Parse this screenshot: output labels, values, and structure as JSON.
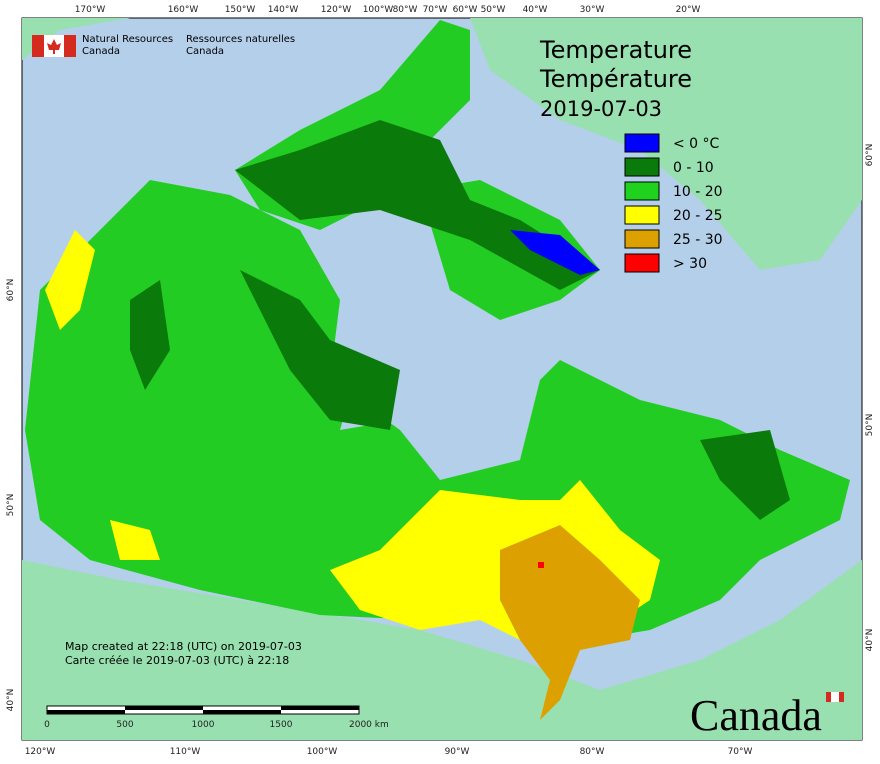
{
  "header": {
    "department_en": "Natural Resources",
    "country_en": "Canada",
    "department_fr": "Ressources naturelles",
    "country_fr": "Canada"
  },
  "title": {
    "en": "Temperature",
    "fr": "Température",
    "date": "2019-07-03"
  },
  "legend": [
    {
      "label": "< 0 °C",
      "color": "#0000ff"
    },
    {
      "label": "0 - 10",
      "color": "#0a7a0a"
    },
    {
      "label": "10 - 20",
      "color": "#1ed21e"
    },
    {
      "label": "20 - 25",
      "color": "#ffff00"
    },
    {
      "label": "25 - 30",
      "color": "#dca000"
    },
    {
      "label": "> 30",
      "color": "#ff0000"
    }
  ],
  "graticule": {
    "top": [
      "170°W",
      "160°W",
      "150°W",
      "140°W",
      "120°W",
      "100°W",
      "80°W",
      "70°W",
      "60°W",
      "50°W",
      "40°W",
      "30°W",
      "20°W"
    ],
    "bottom": [
      "120°W",
      "110°W",
      "100°W",
      "90°W",
      "80°W",
      "70°W"
    ],
    "left": [
      "60°N",
      "50°N",
      "40°N"
    ],
    "right": [
      "60°N",
      "50°N",
      "40°N"
    ]
  },
  "footer": {
    "created_en": "Map created at 22:18 (UTC) on 2019-07-03",
    "created_fr": "Carte créée le 2019-07-03 (UTC) à 22:18"
  },
  "scale": [
    "0",
    "500",
    "1000",
    "1500",
    "2000 km"
  ],
  "wordmark": "Canada"
}
